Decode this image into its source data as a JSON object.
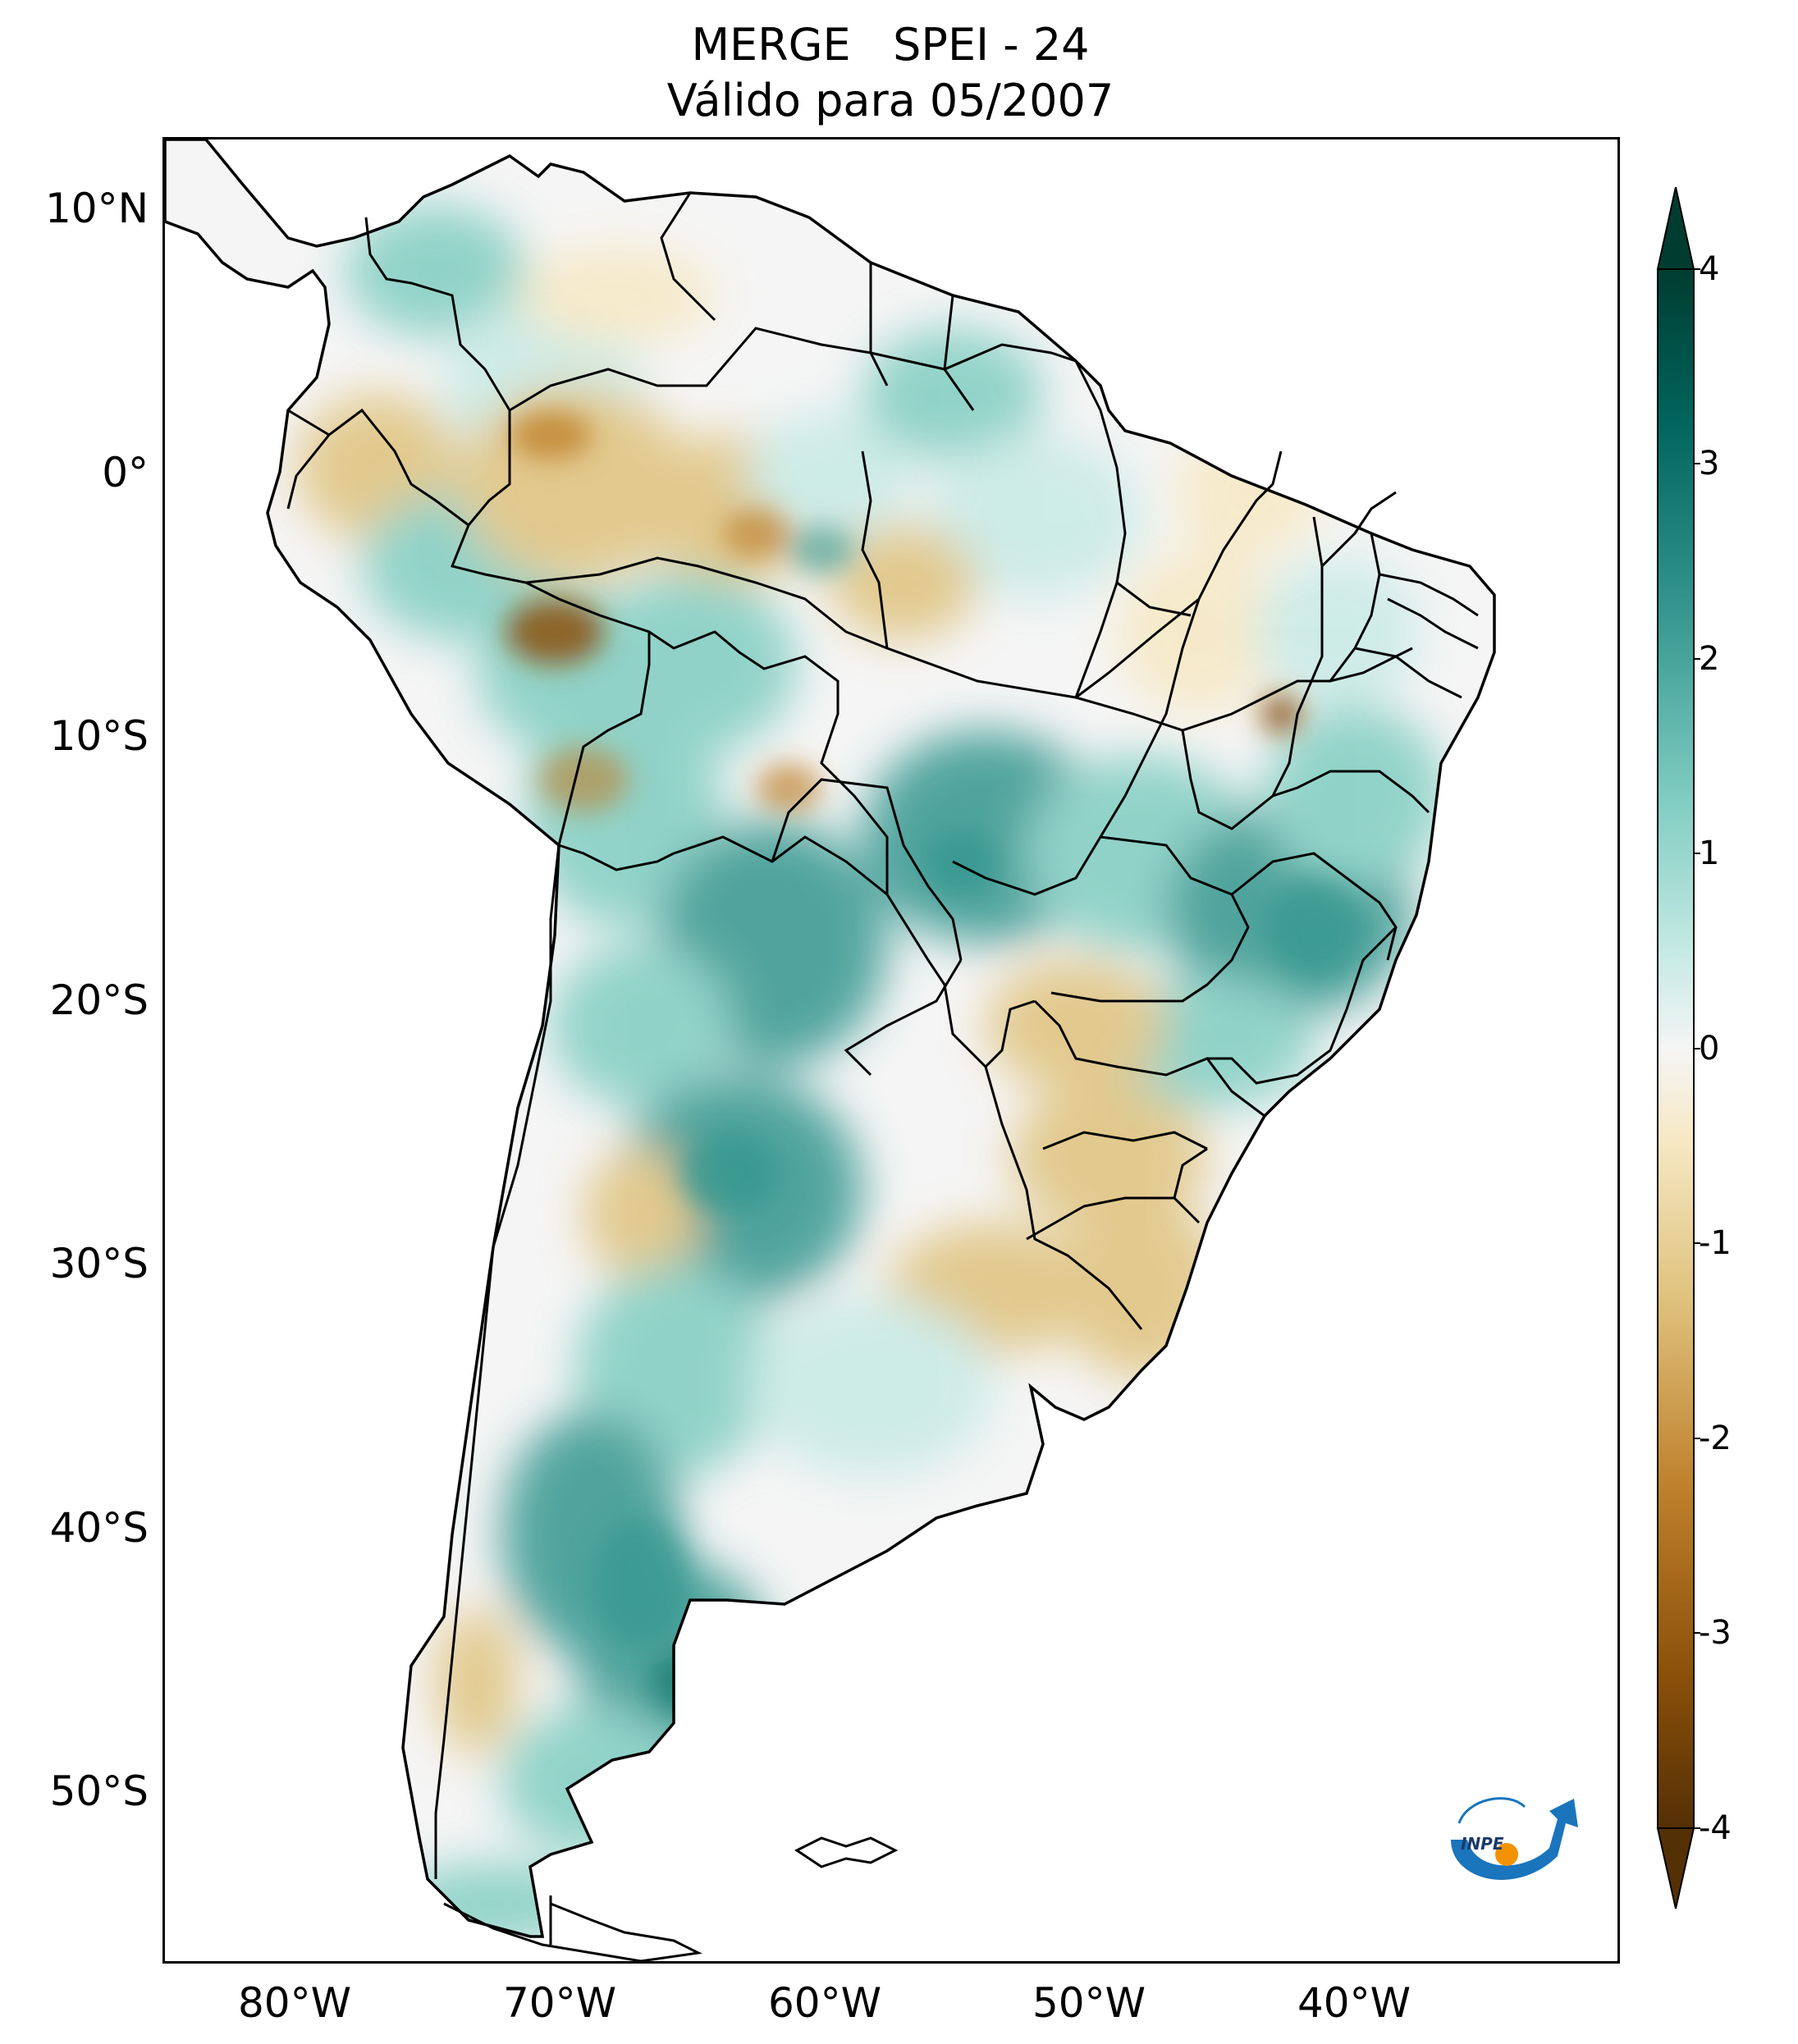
{
  "title": {
    "line1": "MERGE   SPEI - 24",
    "line2": "Válido para 05/2007"
  },
  "map": {
    "lat_ticks": [
      "10°N",
      "0°",
      "10°S",
      "20°S",
      "30°S",
      "40°S",
      "50°S"
    ],
    "lon_ticks": [
      "80°W",
      "70°W",
      "60°W",
      "50°W",
      "40°W"
    ],
    "lon_range": [
      "85°W",
      "30°W"
    ],
    "lat_range": [
      "56°S",
      "13°N"
    ]
  },
  "colorbar": {
    "ticks": [
      "4",
      "3",
      "2",
      "1",
      "0",
      "-1",
      "-2",
      "-3",
      "-4"
    ],
    "min": -4,
    "max": 4,
    "colors": {
      "dry_extreme": "#543005",
      "dry_strong": "#8c510a",
      "dry_moderate": "#bf812d",
      "dry_mild": "#dfc27d",
      "dry_weak": "#f6e8c3",
      "neutral": "#f5f5f5",
      "wet_weak": "#c7eae5",
      "wet_mild": "#80cdc1",
      "wet_moderate": "#35978f",
      "wet_strong": "#01665e",
      "wet_extreme": "#003c30"
    }
  },
  "logo": {
    "text": "INPE",
    "colors": {
      "arrow": "#1a75bc",
      "dot": "#f39200"
    }
  }
}
